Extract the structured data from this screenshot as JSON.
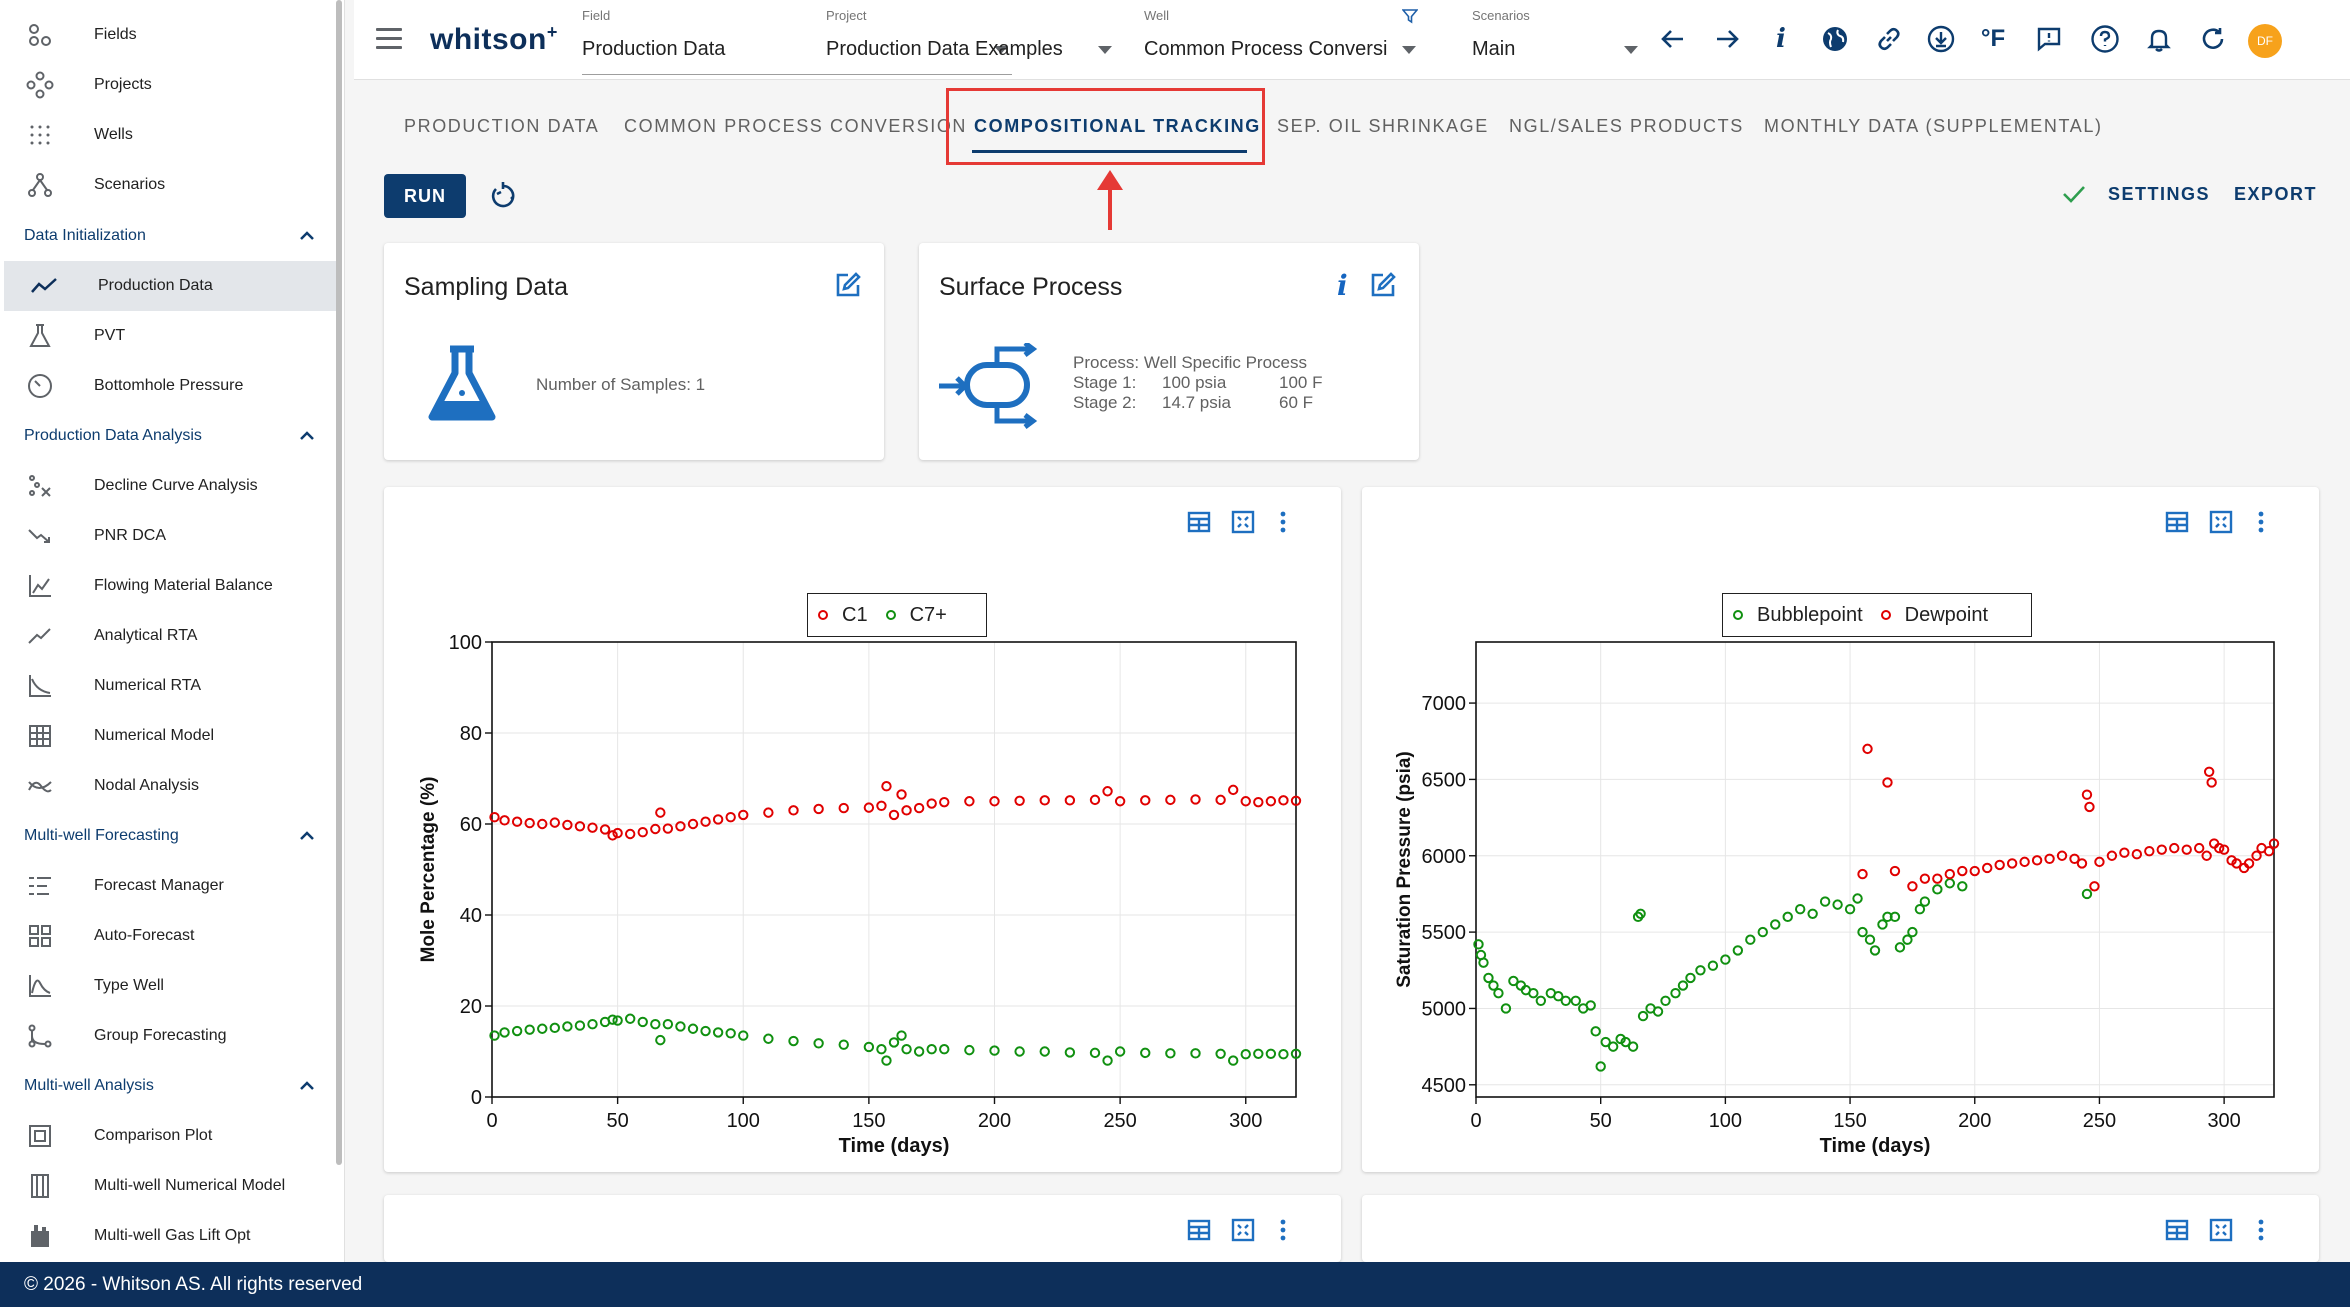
{
  "sidebar": {
    "top_items": [
      {
        "label": "Fields",
        "icon": "fields-icon"
      },
      {
        "label": "Projects",
        "icon": "projects-icon"
      },
      {
        "label": "Wells",
        "icon": "wells-icon"
      },
      {
        "label": "Scenarios",
        "icon": "scenarios-icon"
      }
    ],
    "sections": [
      {
        "title": "Data Initialization",
        "items": [
          "Production Data",
          "PVT",
          "Bottomhole Pressure"
        ]
      },
      {
        "title": "Production Data Analysis",
        "items": [
          "Decline Curve Analysis",
          "PNR DCA",
          "Flowing Material Balance",
          "Analytical RTA",
          "Numerical RTA",
          "Numerical Model",
          "Nodal Analysis"
        ]
      },
      {
        "title": "Multi-well Forecasting",
        "items": [
          "Forecast Manager",
          "Auto-Forecast",
          "Type Well",
          "Group Forecasting"
        ]
      },
      {
        "title": "Multi-well Analysis",
        "items": [
          "Comparison Plot",
          "Multi-well Numerical Model",
          "Multi-well Gas Lift Opt"
        ]
      }
    ],
    "active_item": "Production Data"
  },
  "topbar": {
    "logo": "whitson",
    "logo_sup": "+",
    "field": {
      "caption": "Field",
      "value": "Production Data"
    },
    "project": {
      "caption": "Project",
      "value": "Production Data Examples"
    },
    "well": {
      "caption": "Well",
      "value": "Common Process Conversi"
    },
    "scenarios": {
      "caption": "Scenarios",
      "value": "Main"
    },
    "avatar": "DF",
    "unit_label": "°F",
    "info_label": "i"
  },
  "tabs": [
    "PRODUCTION DATA",
    "COMMON PROCESS CONVERSION",
    "COMPOSITIONAL TRACKING",
    "SEP. OIL SHRINKAGE",
    "NGL/SALES PRODUCTS",
    "MONTHLY DATA (SUPPLEMENTAL)"
  ],
  "actions": {
    "run": "RUN",
    "settings": "SETTINGS",
    "export": "EXPORT"
  },
  "sampling_card": {
    "title": "Sampling Data",
    "samples": "Number of Samples: 1"
  },
  "surface_card": {
    "title": "Surface Process",
    "process": "Process: Well Specific Process",
    "stage1_label": "Stage 1:",
    "stage1_pressure": "100 psia",
    "stage1_temp": "100 F",
    "stage2_label": "Stage 2:",
    "stage2_pressure": "14.7 psia",
    "stage2_temp": "60 F"
  },
  "colors": {
    "primary": "#0d3c6e",
    "red": "#e00000",
    "green": "#109010",
    "highlight": "#e53935"
  },
  "chart_data": [
    {
      "type": "scatter",
      "xlabel": "Time (days)",
      "ylabel": "Mole Percentage (%)",
      "xlim": [
        0,
        320
      ],
      "ylim": [
        0,
        100
      ],
      "xticks": [
        0,
        50,
        100,
        150,
        200,
        250,
        300
      ],
      "yticks": [
        0,
        20,
        40,
        60,
        80,
        100
      ],
      "grid": true,
      "legend_position": "top-center",
      "series": [
        {
          "name": "C1",
          "color": "#e00000",
          "x": [
            1,
            5,
            10,
            15,
            20,
            25,
            30,
            35,
            40,
            45,
            48,
            50,
            55,
            60,
            65,
            67,
            70,
            75,
            80,
            85,
            90,
            95,
            100,
            110,
            120,
            130,
            140,
            150,
            155,
            157,
            160,
            163,
            165,
            170,
            175,
            180,
            190,
            200,
            210,
            220,
            230,
            240,
            245,
            250,
            260,
            270,
            280,
            290,
            295,
            300,
            305,
            310,
            315,
            320
          ],
          "y": [
            61.5,
            60.8,
            60.5,
            60.2,
            60.0,
            60.3,
            59.8,
            59.5,
            59.2,
            58.8,
            57.5,
            58.0,
            57.8,
            58.2,
            58.9,
            62.5,
            59.0,
            59.5,
            60.0,
            60.5,
            61.0,
            61.5,
            62.0,
            62.5,
            63.0,
            63.3,
            63.5,
            63.6,
            64.0,
            68.3,
            62.0,
            66.5,
            63.0,
            63.5,
            64.5,
            64.8,
            65.0,
            65.0,
            65.1,
            65.2,
            65.2,
            65.3,
            67.2,
            65.0,
            65.2,
            65.3,
            65.4,
            65.3,
            67.5,
            65.0,
            64.8,
            65.0,
            65.2,
            65.1
          ]
        },
        {
          "name": "C7+",
          "color": "#109010",
          "x": [
            1,
            5,
            10,
            15,
            20,
            25,
            30,
            35,
            40,
            45,
            48,
            50,
            55,
            60,
            65,
            67,
            70,
            75,
            80,
            85,
            90,
            95,
            100,
            110,
            120,
            130,
            140,
            150,
            155,
            157,
            160,
            163,
            165,
            170,
            175,
            180,
            190,
            200,
            210,
            220,
            230,
            240,
            245,
            250,
            260,
            270,
            280,
            290,
            295,
            300,
            305,
            310,
            315,
            320
          ],
          "y": [
            13.5,
            14.2,
            14.5,
            14.8,
            15.0,
            15.2,
            15.5,
            15.7,
            16.0,
            16.5,
            17.0,
            16.8,
            17.2,
            16.5,
            16.0,
            12.5,
            16.0,
            15.5,
            15.0,
            14.5,
            14.2,
            14.0,
            13.5,
            12.8,
            12.3,
            11.8,
            11.5,
            11.0,
            10.5,
            8.0,
            12.0,
            13.5,
            10.5,
            10.0,
            10.5,
            10.5,
            10.3,
            10.2,
            10.0,
            10.0,
            9.8,
            9.7,
            8.0,
            10.0,
            9.7,
            9.6,
            9.6,
            9.5,
            8.0,
            9.4,
            9.5,
            9.5,
            9.4,
            9.5
          ]
        }
      ]
    },
    {
      "type": "scatter",
      "xlabel": "Time (days)",
      "ylabel": "Saturation Pressure (psia)",
      "xlim": [
        0,
        320
      ],
      "ylim": [
        4420,
        7400
      ],
      "xticks": [
        0,
        50,
        100,
        150,
        200,
        250,
        300
      ],
      "yticks": [
        4500,
        5000,
        5500,
        6000,
        6500,
        7000
      ],
      "grid": true,
      "legend_position": "top-center",
      "series": [
        {
          "name": "Bubblepoint",
          "color": "#109010",
          "x": [
            1,
            2,
            3,
            5,
            7,
            9,
            12,
            15,
            18,
            20,
            23,
            26,
            30,
            33,
            36,
            40,
            43,
            46,
            48,
            50,
            52,
            55,
            58,
            60,
            63,
            65,
            66,
            67,
            70,
            73,
            76,
            80,
            83,
            86,
            90,
            95,
            100,
            105,
            110,
            115,
            120,
            125,
            130,
            135,
            140,
            145,
            150,
            153,
            155,
            158,
            160,
            163,
            165,
            168,
            170,
            173,
            175,
            178,
            180,
            185,
            190,
            195,
            245
          ],
          "y": [
            5420,
            5350,
            5300,
            5200,
            5150,
            5100,
            5000,
            5180,
            5150,
            5120,
            5100,
            5050,
            5100,
            5080,
            5050,
            5050,
            5000,
            5020,
            4850,
            4620,
            4780,
            4750,
            4800,
            4780,
            4750,
            5600,
            5620,
            4950,
            5000,
            4980,
            5050,
            5100,
            5150,
            5200,
            5250,
            5280,
            5320,
            5380,
            5450,
            5500,
            5550,
            5600,
            5650,
            5620,
            5700,
            5680,
            5650,
            5720,
            5500,
            5450,
            5380,
            5550,
            5600,
            5600,
            5400,
            5450,
            5500,
            5650,
            5700,
            5780,
            5820,
            5800,
            5750
          ]
        },
        {
          "name": "Dewpoint",
          "color": "#e00000",
          "x": [
            155,
            157,
            165,
            168,
            175,
            180,
            185,
            190,
            195,
            200,
            205,
            210,
            215,
            220,
            225,
            230,
            235,
            240,
            243,
            245,
            246,
            248,
            250,
            255,
            260,
            265,
            270,
            275,
            280,
            285,
            290,
            293,
            294,
            295,
            296,
            298,
            300,
            303,
            305,
            308,
            310,
            313,
            315,
            318,
            320
          ],
          "y": [
            5880,
            6700,
            6480,
            5900,
            5800,
            5850,
            5850,
            5880,
            5900,
            5900,
            5920,
            5940,
            5950,
            5960,
            5970,
            5980,
            6000,
            5980,
            5950,
            6400,
            6320,
            5800,
            5960,
            6000,
            6020,
            6010,
            6030,
            6040,
            6050,
            6040,
            6050,
            6000,
            6550,
            6480,
            6080,
            6050,
            6040,
            5970,
            5950,
            5920,
            5950,
            6000,
            6050,
            6030,
            6080
          ]
        }
      ]
    }
  ],
  "footer": "© 2026 - Whitson AS. All rights reserved"
}
